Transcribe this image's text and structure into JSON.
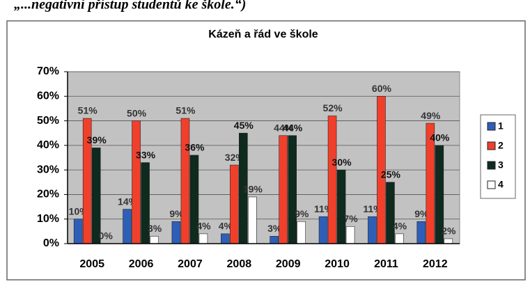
{
  "caption": "„...negativní přístup studentů ke škole.“)",
  "chart_data": {
    "type": "bar",
    "title": "Kázeň a řád ve škole",
    "categories": [
      "2005",
      "2006",
      "2007",
      "2008",
      "2009",
      "2010",
      "2011",
      "2012"
    ],
    "series": [
      {
        "name": "1",
        "color": "#2e5fb8",
        "values": [
          10,
          14,
          9,
          4,
          3,
          11,
          11,
          9
        ],
        "value_labels": [
          "10%",
          "14%",
          "9%",
          "4%",
          "3%",
          "11%",
          "11%",
          "9%"
        ]
      },
      {
        "name": "2",
        "color": "#f0402c",
        "values": [
          51,
          50,
          51,
          32,
          44,
          52,
          60,
          49
        ],
        "value_labels": [
          "51%",
          "50%",
          "51%",
          "32%",
          "44%",
          "52%",
          "60%",
          "49%"
        ]
      },
      {
        "name": "3",
        "color": "#0f2a1e",
        "values": [
          39,
          33,
          36,
          45,
          44,
          30,
          25,
          40
        ],
        "value_labels": [
          "39%",
          "33%",
          "36%",
          "45%",
          "44%",
          "30%",
          "25%",
          "40%"
        ]
      },
      {
        "name": "4",
        "color": "#ffffff",
        "values": [
          0,
          3,
          4,
          19,
          9,
          7,
          4,
          2
        ],
        "value_labels": [
          "0%",
          "3%",
          "4%",
          "19%",
          "9%",
          "7%",
          "4%",
          "2%"
        ]
      }
    ],
    "ylim": [
      0,
      70
    ],
    "yticks": [
      {
        "value": 0,
        "label": "0%"
      },
      {
        "value": 10,
        "label": "10%"
      },
      {
        "value": 20,
        "label": "20%"
      },
      {
        "value": 30,
        "label": "30%"
      },
      {
        "value": 40,
        "label": "40%"
      },
      {
        "value": 50,
        "label": "50%"
      },
      {
        "value": 60,
        "label": "60%"
      },
      {
        "value": 70,
        "label": "70%"
      }
    ],
    "grid": true,
    "legend": "right"
  }
}
